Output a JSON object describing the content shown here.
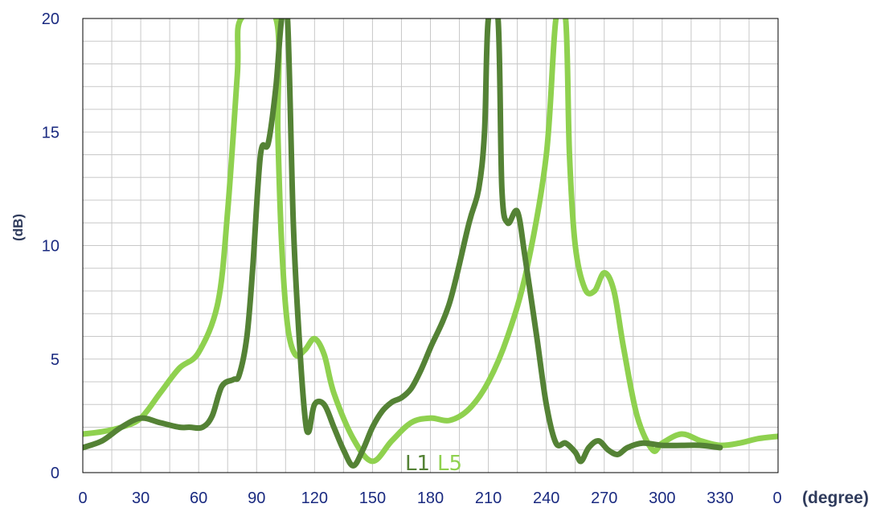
{
  "chart_data": {
    "type": "line",
    "xlabel": "(degree)",
    "ylabel": "(dB)",
    "xlim": [
      0,
      360
    ],
    "ylim": [
      0,
      20
    ],
    "x_ticks": [
      "0",
      "30",
      "60",
      "90",
      "120",
      "150",
      "180",
      "210",
      "240",
      "270",
      "300",
      "330",
      "0"
    ],
    "x_tick_values": [
      0,
      30,
      60,
      90,
      120,
      150,
      180,
      210,
      240,
      270,
      300,
      330,
      360
    ],
    "y_ticks": [
      "0",
      "5",
      "10",
      "15",
      "20"
    ],
    "y_tick_values": [
      0,
      5,
      10,
      15,
      20
    ],
    "grid": true,
    "series": [
      {
        "name": "L5",
        "color": "#8fd14f",
        "points": [
          [
            0,
            1.7
          ],
          [
            10,
            1.8
          ],
          [
            20,
            2.0
          ],
          [
            30,
            2.4
          ],
          [
            40,
            3.5
          ],
          [
            50,
            4.6
          ],
          [
            60,
            5.3
          ],
          [
            70,
            7.5
          ],
          [
            75,
            11.5
          ],
          [
            80,
            17.5
          ],
          [
            82,
            20.0
          ],
          [
            100,
            20.0
          ],
          [
            101,
            15.0
          ],
          [
            103,
            10.0
          ],
          [
            106,
            6.5
          ],
          [
            110,
            5.2
          ],
          [
            115,
            5.4
          ],
          [
            120,
            5.9
          ],
          [
            125,
            5.2
          ],
          [
            130,
            3.5
          ],
          [
            140,
            1.5
          ],
          [
            150,
            0.5
          ],
          [
            160,
            1.4
          ],
          [
            170,
            2.2
          ],
          [
            180,
            2.4
          ],
          [
            190,
            2.3
          ],
          [
            200,
            2.8
          ],
          [
            210,
            4.0
          ],
          [
            220,
            6.0
          ],
          [
            230,
            9.0
          ],
          [
            240,
            14.0
          ],
          [
            245,
            20.0
          ],
          [
            250,
            20.0
          ],
          [
            252,
            14.0
          ],
          [
            255,
            10.0
          ],
          [
            260,
            8.1
          ],
          [
            265,
            8.0
          ],
          [
            270,
            8.8
          ],
          [
            275,
            8.0
          ],
          [
            280,
            5.5
          ],
          [
            287,
            2.5
          ],
          [
            295,
            1.0
          ],
          [
            300,
            1.3
          ],
          [
            310,
            1.7
          ],
          [
            320,
            1.4
          ],
          [
            330,
            1.2
          ],
          [
            340,
            1.3
          ],
          [
            350,
            1.5
          ],
          [
            360,
            1.6
          ]
        ]
      },
      {
        "name": "L1",
        "color": "#548235",
        "points": [
          [
            0,
            1.1
          ],
          [
            10,
            1.4
          ],
          [
            20,
            2.0
          ],
          [
            30,
            2.4
          ],
          [
            40,
            2.2
          ],
          [
            50,
            2.0
          ],
          [
            55,
            2.0
          ],
          [
            62,
            2.0
          ],
          [
            67,
            2.5
          ],
          [
            72,
            3.8
          ],
          [
            78,
            4.1
          ],
          [
            81,
            4.3
          ],
          [
            85,
            6.0
          ],
          [
            88,
            9.0
          ],
          [
            92,
            14.0
          ],
          [
            96,
            14.5
          ],
          [
            100,
            17.0
          ],
          [
            103,
            20.0
          ],
          [
            106,
            20.0
          ],
          [
            109,
            11.0
          ],
          [
            112,
            6.0
          ],
          [
            115,
            2.5
          ],
          [
            117,
            1.8
          ],
          [
            120,
            3.0
          ],
          [
            125,
            3.0
          ],
          [
            130,
            2.0
          ],
          [
            135,
            1.0
          ],
          [
            140,
            0.3
          ],
          [
            145,
            1.0
          ],
          [
            150,
            2.0
          ],
          [
            155,
            2.7
          ],
          [
            160,
            3.1
          ],
          [
            165,
            3.3
          ],
          [
            170,
            3.7
          ],
          [
            175,
            4.5
          ],
          [
            180,
            5.5
          ],
          [
            190,
            7.5
          ],
          [
            200,
            11.0
          ],
          [
            205,
            12.5
          ],
          [
            208,
            15.0
          ],
          [
            210,
            20.0
          ],
          [
            215,
            20.0
          ],
          [
            217,
            12.5
          ],
          [
            220,
            11.0
          ],
          [
            225,
            11.5
          ],
          [
            229,
            9.5
          ],
          [
            235,
            6.0
          ],
          [
            240,
            3.0
          ],
          [
            245,
            1.3
          ],
          [
            250,
            1.3
          ],
          [
            255,
            0.9
          ],
          [
            258,
            0.5
          ],
          [
            262,
            1.1
          ],
          [
            267,
            1.4
          ],
          [
            272,
            1.0
          ],
          [
            277,
            0.8
          ],
          [
            282,
            1.1
          ],
          [
            290,
            1.3
          ],
          [
            300,
            1.2
          ],
          [
            310,
            1.2
          ],
          [
            320,
            1.2
          ],
          [
            330,
            1.1
          ]
        ]
      }
    ],
    "annotations": [
      "L1",
      "L5"
    ]
  }
}
